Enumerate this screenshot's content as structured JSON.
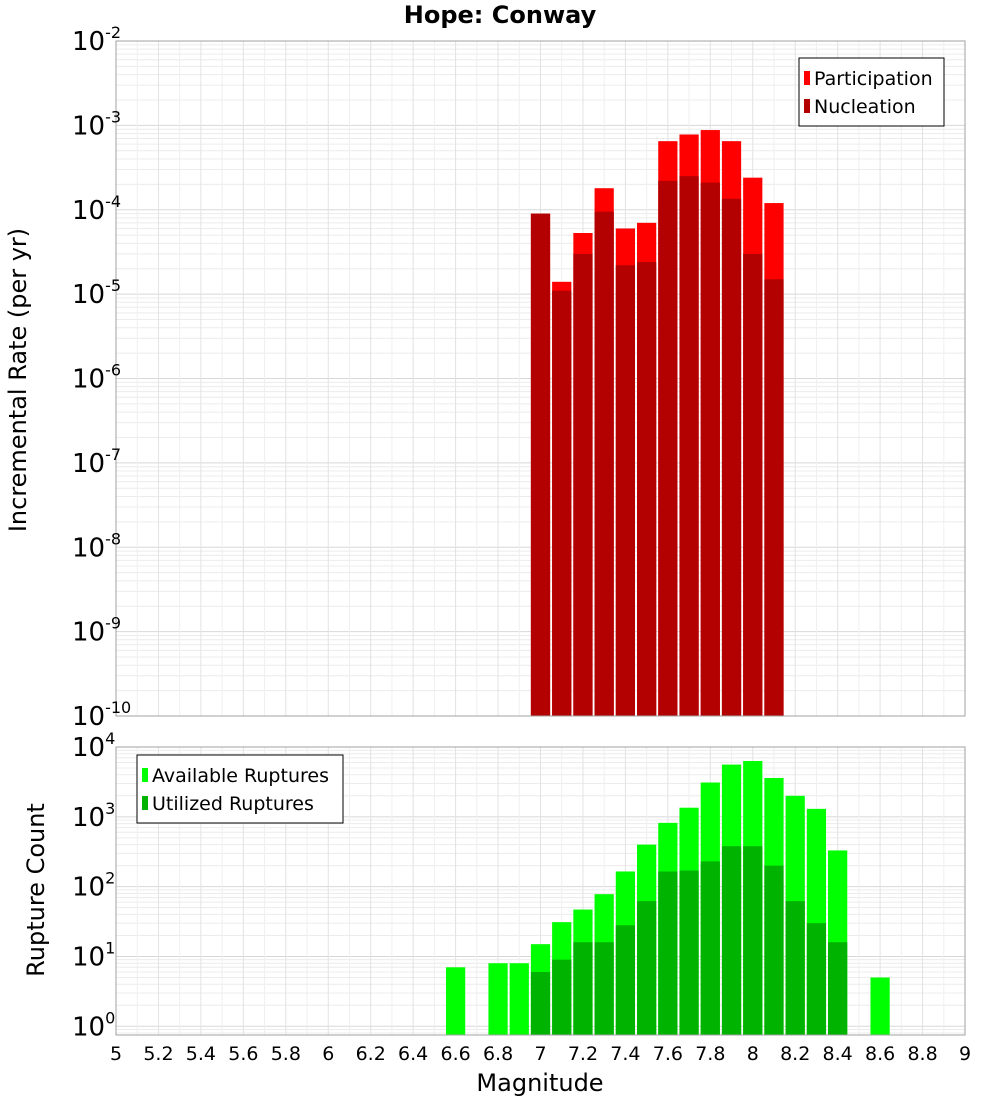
{
  "title": "Hope: Conway",
  "chart_data": [
    {
      "type": "bar",
      "panel": "top",
      "ylabel": "Incremental Rate (per yr)",
      "yscale": "log",
      "ylim": [
        1e-10,
        0.01
      ],
      "xlim": [
        5,
        9
      ],
      "grid": true,
      "legend_position": "top-right",
      "x": [
        7.0,
        7.1,
        7.2,
        7.3,
        7.4,
        7.5,
        7.6,
        7.7,
        7.8,
        7.9,
        8.0,
        8.1
      ],
      "series": [
        {
          "name": "Participation",
          "color": "#ff0000",
          "values": [
            9e-05,
            1.4e-05,
            5.3e-05,
            0.00018,
            6e-05,
            7e-05,
            0.00065,
            0.00078,
            0.00088,
            0.00065,
            0.00024,
            0.00012
          ]
        },
        {
          "name": "Nucleation",
          "color": "#b30000",
          "values": [
            9e-05,
            1.1e-05,
            3e-05,
            9.5e-05,
            2.2e-05,
            2.4e-05,
            0.00022,
            0.00025,
            0.00021,
            0.000135,
            3e-05,
            1.5e-05
          ]
        }
      ]
    },
    {
      "type": "bar",
      "panel": "bottom",
      "ylabel": "Rupture Count",
      "xlabel": "Magnitude",
      "yscale": "log",
      "ylim": [
        0.75,
        10000
      ],
      "xlim": [
        5,
        9
      ],
      "grid": true,
      "legend_position": "top-left",
      "x": [
        6.6,
        6.7,
        6.8,
        6.9,
        7.0,
        7.1,
        7.2,
        7.3,
        7.4,
        7.5,
        7.6,
        7.7,
        7.8,
        7.9,
        8.0,
        8.1,
        8.2,
        8.3,
        8.4,
        8.5,
        8.6
      ],
      "series": [
        {
          "name": "Available Ruptures",
          "color": "#00ff00",
          "values": [
            7,
            0,
            8,
            8,
            15,
            31,
            47,
            78,
            165,
            400,
            820,
            1350,
            3100,
            5600,
            6300,
            3600,
            2000,
            1300,
            330,
            0,
            5
          ]
        },
        {
          "name": "Utilized Ruptures",
          "color": "#00b300",
          "values": [
            0,
            0,
            0,
            0,
            6,
            9,
            16,
            16,
            28,
            62,
            165,
            170,
            230,
            380,
            380,
            200,
            62,
            30,
            16,
            0,
            0
          ]
        }
      ]
    }
  ],
  "axes": {
    "top_y_ticks": [
      {
        "base": "10",
        "exp": "-2"
      },
      {
        "base": "10",
        "exp": "-3"
      },
      {
        "base": "10",
        "exp": "-4"
      },
      {
        "base": "10",
        "exp": "-5"
      },
      {
        "base": "10",
        "exp": "-6"
      },
      {
        "base": "10",
        "exp": "-7"
      },
      {
        "base": "10",
        "exp": "-8"
      },
      {
        "base": "10",
        "exp": "-9"
      },
      {
        "base": "10",
        "exp": "-10"
      }
    ],
    "bottom_y_ticks": [
      {
        "base": "10",
        "exp": "4"
      },
      {
        "base": "10",
        "exp": "3"
      },
      {
        "base": "10",
        "exp": "2"
      },
      {
        "base": "10",
        "exp": "1"
      },
      {
        "base": "10",
        "exp": "0"
      }
    ],
    "x_ticks": [
      "5",
      "5.2",
      "5.4",
      "5.6",
      "5.8",
      "6",
      "6.2",
      "6.4",
      "6.6",
      "6.8",
      "7",
      "7.2",
      "7.4",
      "7.6",
      "7.8",
      "8",
      "8.2",
      "8.4",
      "8.6",
      "8.8",
      "9"
    ]
  }
}
